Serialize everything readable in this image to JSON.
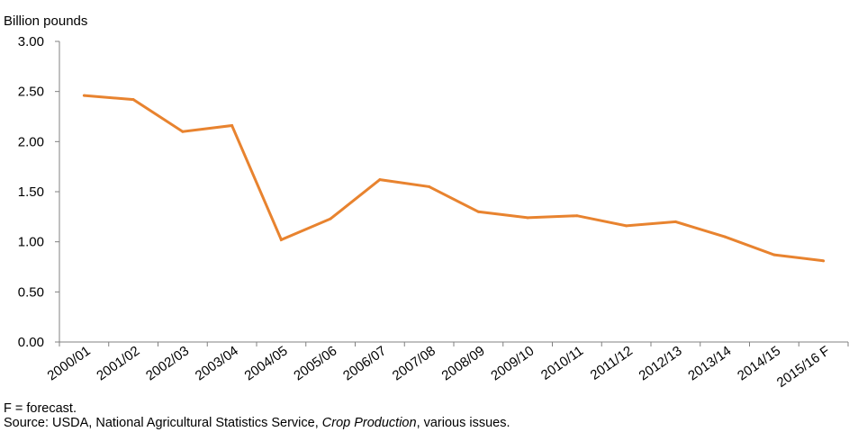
{
  "chart_data": {
    "type": "line",
    "ylabel": "Billion pounds",
    "ylim": [
      0,
      3
    ],
    "yticks": [
      "0.00",
      "0.50",
      "1.00",
      "1.50",
      "2.00",
      "2.50",
      "3.00"
    ],
    "ytick_values": [
      0,
      0.5,
      1,
      1.5,
      2,
      2.5,
      3
    ],
    "categories": [
      "2000/01",
      "2001/02",
      "2002/03",
      "2003/04",
      "2004/05",
      "2005/06",
      "2006/07",
      "2007/08",
      "2008/09",
      "2009/10",
      "2010/11",
      "2011/12",
      "2012/13",
      "2013/14",
      "2014/15",
      "2015/16 F"
    ],
    "series": [
      {
        "values": [
          2.46,
          2.42,
          2.1,
          2.16,
          1.02,
          1.23,
          1.62,
          1.55,
          1.3,
          1.24,
          1.26,
          1.16,
          1.2,
          1.05,
          0.87,
          0.81
        ],
        "color": "#E8832F"
      }
    ],
    "grid": false
  },
  "notes": {
    "forecast_note": "F = forecast.",
    "source_prefix": "Source:  USDA, National Agricultural Statistics Service, ",
    "source_title": "Crop Production",
    "source_suffix": ", various issues."
  }
}
